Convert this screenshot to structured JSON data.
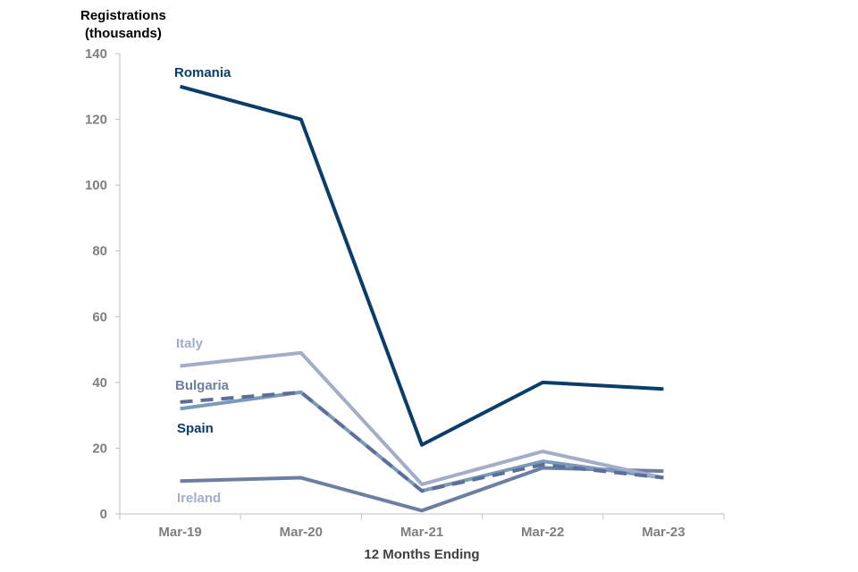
{
  "chart_data": {
    "type": "line",
    "ylabel_lines": [
      "Registrations",
      "(thousands)"
    ],
    "xlabel": "12 Months Ending",
    "categories": [
      "Mar-19",
      "Mar-20",
      "Mar-21",
      "Mar-22",
      "Mar-23"
    ],
    "ylim": [
      0,
      140
    ],
    "yticks": [
      0,
      20,
      40,
      60,
      80,
      100,
      120,
      140
    ],
    "grid": false,
    "legend": "inline labels",
    "series": [
      {
        "name": "Romania",
        "values": [
          130,
          120,
          21,
          40,
          38
        ],
        "color": "#0b3d6b",
        "dashed": false
      },
      {
        "name": "Italy",
        "values": [
          45,
          49,
          9,
          19,
          11
        ],
        "color": "#a3adc8",
        "dashed": false
      },
      {
        "name": "Bulgaria",
        "values": [
          34,
          37,
          7,
          15,
          11
        ],
        "color": "#5c6f9c",
        "dashed": true
      },
      {
        "name": "Spain",
        "values": [
          32,
          37,
          7,
          16,
          11
        ],
        "color": "#7a9bb8",
        "dashed": false
      },
      {
        "name": "Ireland",
        "values": [
          10,
          11,
          1,
          14,
          13
        ],
        "color": "#6d7ea3",
        "dashed": false
      }
    ],
    "label_colors": {
      "Romania": "#0b3d6b",
      "Italy": "#a3adc8",
      "Bulgaria": "#6d7ea3",
      "Spain": "#0b3d6b",
      "Ireland": "#a3adc8"
    }
  }
}
